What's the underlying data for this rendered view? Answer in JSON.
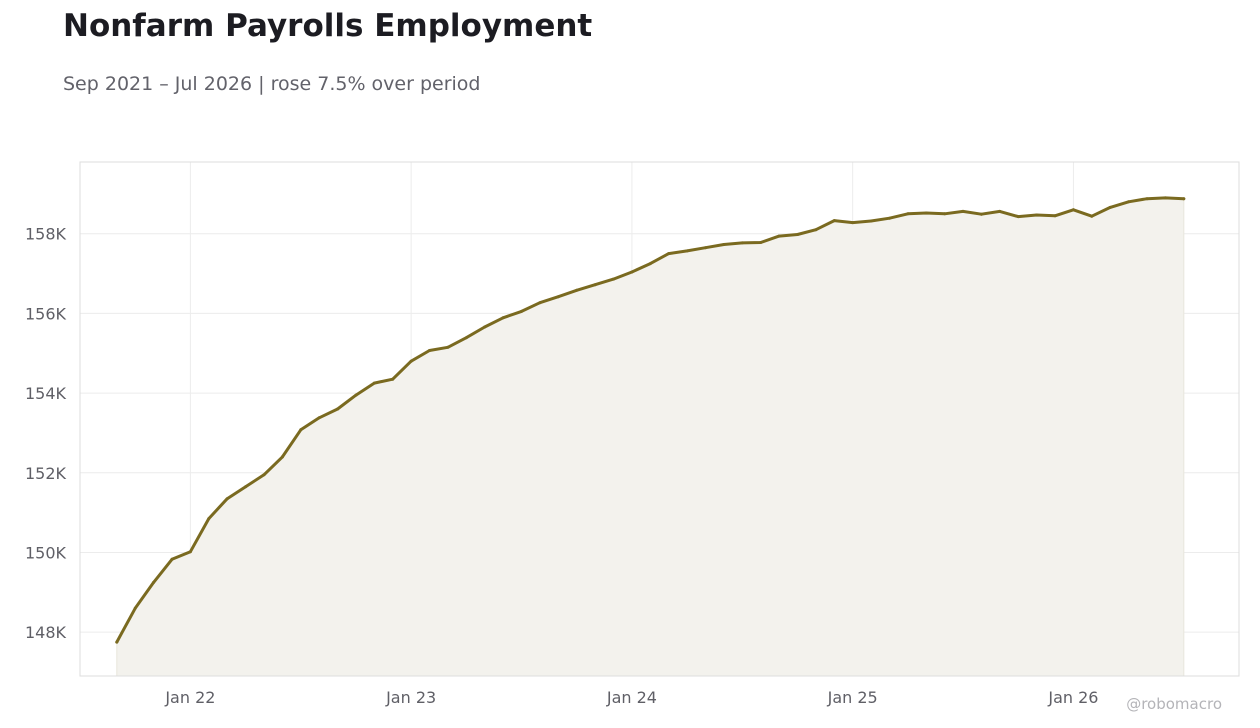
{
  "header": {
    "title": "Nonfarm Payrolls Employment",
    "subtitle": "Sep 2021 – Jul 2026 | rose 7.5% over period"
  },
  "footer": {
    "credit": "@robomacro"
  },
  "colors": {
    "line": "#7a6a20",
    "fill": "#f3f2ed",
    "grid": "#ececec",
    "frame": "#dddddd"
  },
  "chart_data": {
    "type": "area",
    "title": "Nonfarm Payrolls Employment",
    "subtitle": "Sep 2021 – Jul 2026 | rose 7.5% over period",
    "xlabel": "",
    "ylabel": "",
    "x_ticks": [
      {
        "date": "2022-01",
        "label": "Jan 22"
      },
      {
        "date": "2023-01",
        "label": "Jan 23"
      },
      {
        "date": "2024-01",
        "label": "Jan 24"
      },
      {
        "date": "2025-01",
        "label": "Jan 25"
      },
      {
        "date": "2026-01",
        "label": "Jan 26"
      }
    ],
    "y_ticks": [
      {
        "value": 148000,
        "label": "148K"
      },
      {
        "value": 150000,
        "label": "150K"
      },
      {
        "value": 152000,
        "label": "152K"
      },
      {
        "value": 154000,
        "label": "154K"
      },
      {
        "value": 156000,
        "label": "156K"
      },
      {
        "value": 158000,
        "label": "158K"
      }
    ],
    "xlim": [
      "2021-07",
      "2026-10"
    ],
    "ylim": [
      146900,
      159800
    ],
    "grid": true,
    "series": [
      {
        "x": [
          "2021-09",
          "2021-10",
          "2021-11",
          "2021-12",
          "2022-01",
          "2022-02",
          "2022-03",
          "2022-04",
          "2022-05",
          "2022-06",
          "2022-07",
          "2022-08",
          "2022-09",
          "2022-10",
          "2022-11",
          "2022-12",
          "2023-01",
          "2023-02",
          "2023-03",
          "2023-04",
          "2023-05",
          "2023-06",
          "2023-07",
          "2023-08",
          "2023-09",
          "2023-10",
          "2023-11",
          "2023-12",
          "2024-01",
          "2024-02",
          "2024-03",
          "2024-04",
          "2024-05",
          "2024-06",
          "2024-07",
          "2024-08",
          "2024-09",
          "2024-10",
          "2024-11",
          "2024-12",
          "2025-01",
          "2025-02",
          "2025-03",
          "2025-04",
          "2025-05",
          "2025-06",
          "2025-07",
          "2025-08",
          "2025-09",
          "2025-10",
          "2025-11",
          "2025-12",
          "2026-01",
          "2026-02",
          "2026-03",
          "2026-04",
          "2026-05",
          "2026-06",
          "2026-07"
        ],
        "values": [
          147750,
          148600,
          149250,
          149830,
          150020,
          150850,
          151350,
          151650,
          151950,
          152400,
          153080,
          153380,
          153600,
          153950,
          154250,
          154350,
          154800,
          155070,
          155150,
          155390,
          155660,
          155890,
          156050,
          156270,
          156420,
          156580,
          156720,
          156860,
          157040,
          157250,
          157500,
          157570,
          157650,
          157730,
          157770,
          157780,
          157940,
          157980,
          158100,
          158330,
          158280,
          158320,
          158390,
          158500,
          158520,
          158500,
          158560,
          158490,
          158560,
          158430,
          158470,
          158450,
          158600,
          158440,
          158660,
          158800,
          158880,
          158900,
          158880
        ]
      }
    ]
  }
}
